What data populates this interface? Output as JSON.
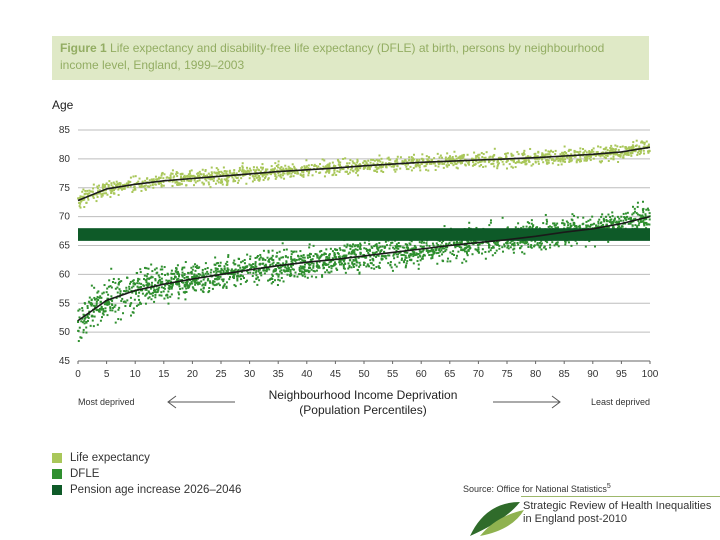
{
  "title": {
    "label": "Figure 1",
    "text": "Life expectancy and disability-free life expectancy (DFLE) at birth, persons by neighbourhood income level, England, 1999–2003"
  },
  "colors": {
    "life_expectancy": "#a9c75a",
    "dfle": "#2f8f2f",
    "pension_band": "#0e5a28",
    "trend": "#1a1a1a",
    "title_bg": "#dfe9c6",
    "title_text": "#93ad63"
  },
  "chart_data": {
    "type": "scatter",
    "ylabel": "Age",
    "xlabel_line1": "Neighbourhood Income Deprivation",
    "xlabel_line2": "(Population Percentiles)",
    "xlim": [
      0,
      100
    ],
    "ylim": [
      45,
      85
    ],
    "x_ticks": [
      "0",
      "5",
      "10",
      "15",
      "20",
      "25",
      "30",
      "35",
      "40",
      "45",
      "50",
      "55",
      "60",
      "65",
      "70",
      "75",
      "80",
      "85",
      "90",
      "95",
      "100"
    ],
    "y_ticks": [
      "45",
      "50",
      "55",
      "60",
      "65",
      "70",
      "75",
      "80",
      "85"
    ],
    "grid": true,
    "series": [
      {
        "name": "Life expectancy",
        "trend": {
          "x": [
            0,
            5,
            10,
            15,
            20,
            25,
            30,
            35,
            40,
            45,
            50,
            55,
            60,
            65,
            70,
            75,
            80,
            85,
            90,
            95,
            100
          ],
          "y": [
            72.8,
            74.8,
            75.6,
            76.2,
            76.6,
            77.0,
            77.4,
            77.8,
            78.1,
            78.4,
            78.8,
            79.1,
            79.4,
            79.6,
            79.8,
            80.0,
            80.2,
            80.5,
            80.8,
            81.2,
            82.0
          ]
        },
        "spread": 1.2
      },
      {
        "name": "DFLE",
        "trend": {
          "x": [
            0,
            5,
            10,
            15,
            20,
            25,
            30,
            35,
            40,
            45,
            50,
            55,
            60,
            65,
            70,
            75,
            80,
            85,
            90,
            95,
            100
          ],
          "y": [
            52.0,
            55.5,
            57.2,
            58.3,
            59.2,
            60.0,
            60.8,
            61.5,
            62.1,
            62.6,
            63.2,
            63.8,
            64.4,
            65.0,
            65.5,
            66.0,
            66.6,
            67.3,
            67.9,
            68.8,
            70.0
          ]
        },
        "spread": 2.3
      }
    ],
    "band": {
      "name": "Pension age increase 2026–2046",
      "y_range": [
        65.8,
        68.0
      ]
    },
    "annotations": {
      "left": "Most deprived",
      "right": "Least deprived"
    }
  },
  "legend": [
    {
      "label": "Life expectancy",
      "color": "#a9c75a"
    },
    {
      "label": "DFLE",
      "color": "#2f8f2f"
    },
    {
      "label": "Pension age increase 2026–2046",
      "color": "#0e5a28"
    }
  ],
  "source": {
    "text": "Source: Office for National Statistics",
    "sup": "5"
  },
  "logo": {
    "line1": "Strategic Review of Health Inequalities",
    "line2": "in England post-2010"
  }
}
